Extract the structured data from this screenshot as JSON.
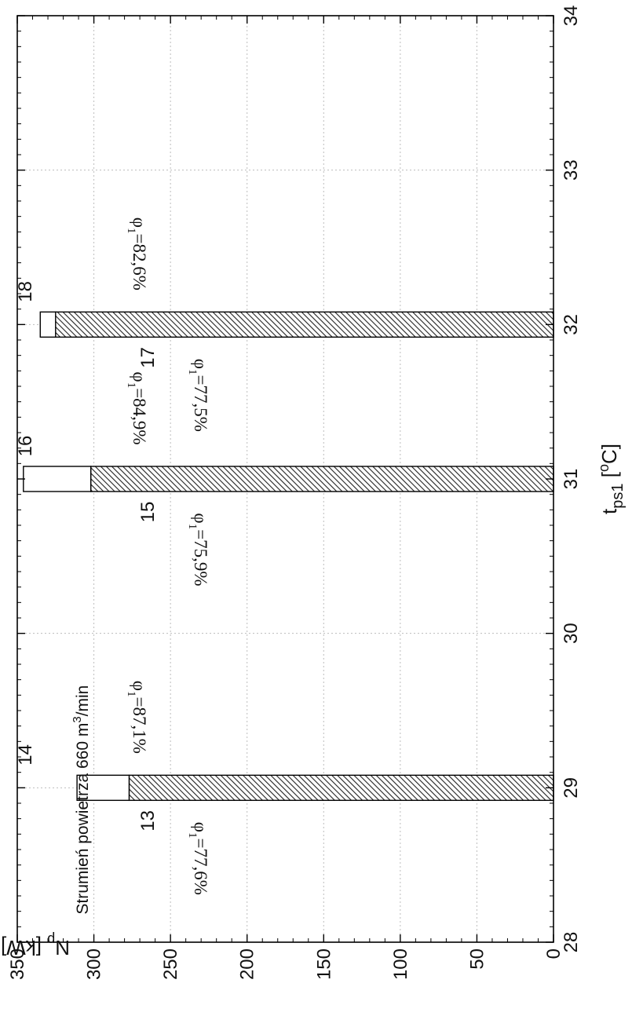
{
  "chart_data": {
    "type": "bar",
    "x_label": "t",
    "x_label_sub": "ps1",
    "x_label_unit_open": " [",
    "x_label_unit_sup": "o",
    "x_label_unit_close": "C]",
    "y_label": "N",
    "y_label_sub": "p",
    "y_label_unit": " [kW]",
    "annotation_text": "Strumień powietrza 660 m",
    "annotation_sup": "3",
    "annotation_tail": "/min",
    "xlim": [
      28,
      34
    ],
    "ylim": [
      0,
      350
    ],
    "x_ticks": [
      28,
      29,
      30,
      31,
      32,
      33,
      34
    ],
    "y_ticks": [
      0,
      50,
      100,
      150,
      200,
      250,
      300,
      350
    ],
    "grid": true,
    "stacked": true,
    "series": [
      {
        "fill": "hatched",
        "values": [
          {
            "x": 29,
            "y": 277,
            "label": "13",
            "phi": "=77,6%"
          },
          {
            "x": 31,
            "y": 302,
            "label": "15",
            "phi": "=75,9%"
          },
          {
            "x": 32,
            "y": 325,
            "label": "17",
            "phi": "=77,5%"
          }
        ]
      },
      {
        "fill": "white",
        "values": [
          {
            "x": 29,
            "y": 311,
            "label": "14",
            "phi": "=87,1%"
          },
          {
            "x": 31,
            "y": 346,
            "label": "16",
            "phi": "=84,9%"
          },
          {
            "x": 32,
            "y": 335,
            "label": "18",
            "phi": "=82,6%"
          }
        ]
      }
    ],
    "phi_symbol": "φ",
    "phi_sub": "1"
  }
}
